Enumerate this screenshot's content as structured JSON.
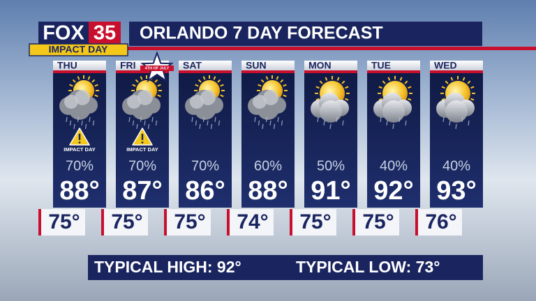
{
  "logo": {
    "brand": "FOX",
    "number": "35",
    "tag": "IMPACT DAY"
  },
  "header": {
    "title": "ORLANDO 7 DAY FORECAST"
  },
  "days": [
    {
      "day": "THU",
      "impact": "IMPACT DAY",
      "precip": "70%",
      "high": "88°",
      "low": "75°"
    },
    {
      "day": "FRI",
      "badge": "4TH OF JULY",
      "impact": "IMPACT DAY",
      "precip": "70%",
      "high": "87°",
      "low": "75°"
    },
    {
      "day": "SAT",
      "precip": "70%",
      "high": "86°",
      "low": "75°"
    },
    {
      "day": "SUN",
      "precip": "60%",
      "high": "88°",
      "low": "74°"
    },
    {
      "day": "MON",
      "precip": "50%",
      "high": "91°",
      "low": "75°"
    },
    {
      "day": "TUE",
      "precip": "40%",
      "high": "92°",
      "low": "75°"
    },
    {
      "day": "WED",
      "precip": "40%",
      "high": "93°",
      "low": "76°"
    }
  ],
  "footer": {
    "typical_high": "TYPICAL HIGH: 92°",
    "typical_low": "TYPICAL LOW: 73°"
  }
}
